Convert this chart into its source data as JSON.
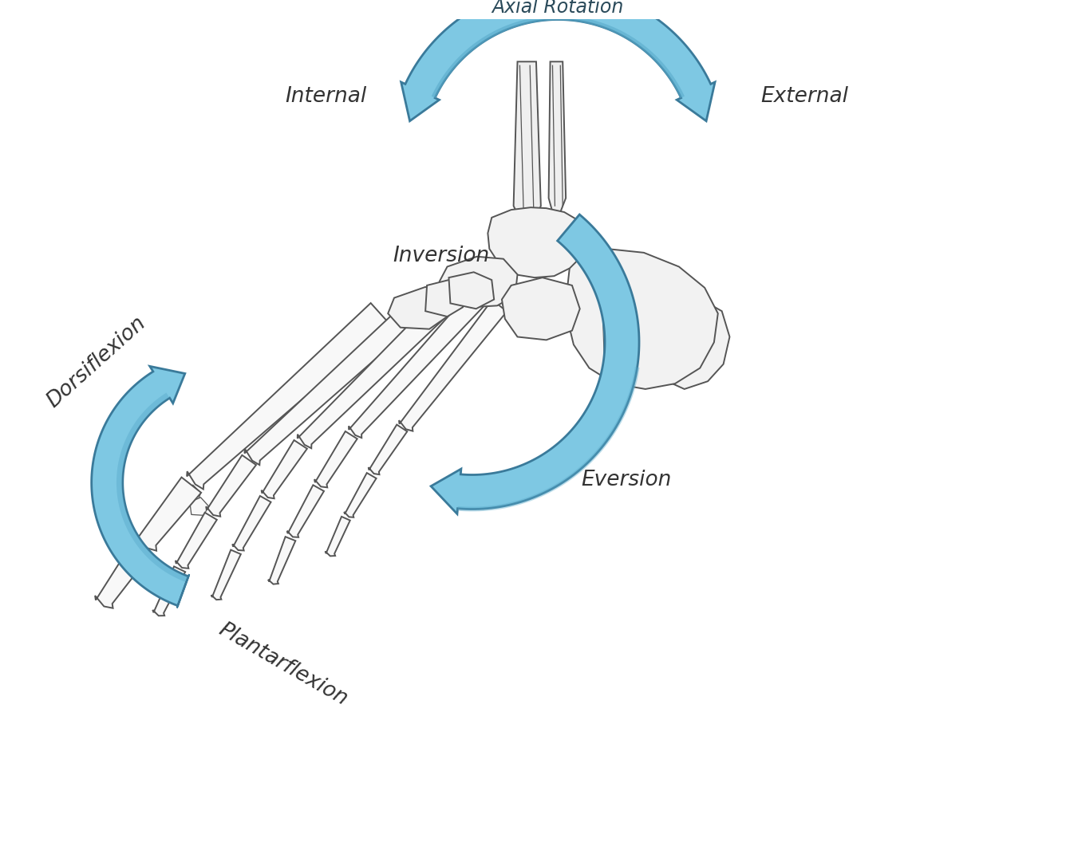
{
  "bg_color": "#ffffff",
  "bone_fill": "#f8f8f8",
  "bone_edge": "#555555",
  "arrow_fill_light": "#a8d8ea",
  "arrow_fill_mid": "#7ec8e3",
  "arrow_fill_dark": "#5aabcb",
  "arrow_edge": "#3a7a9a",
  "arrow_edge_dark": "#2a5a72",
  "labels": {
    "internal": "Internal",
    "external": "External",
    "axial_rotation": "Axial Rotation",
    "inversion": "Inversion",
    "eversion": "Eversion",
    "dorsiflexion": "Dorsiflexion",
    "plantarflexion": "Plantarflexion"
  },
  "label_fontsize": 19,
  "axial_fontsize": 17,
  "figsize": [
    13.41,
    10.56
  ],
  "dpi": 100
}
